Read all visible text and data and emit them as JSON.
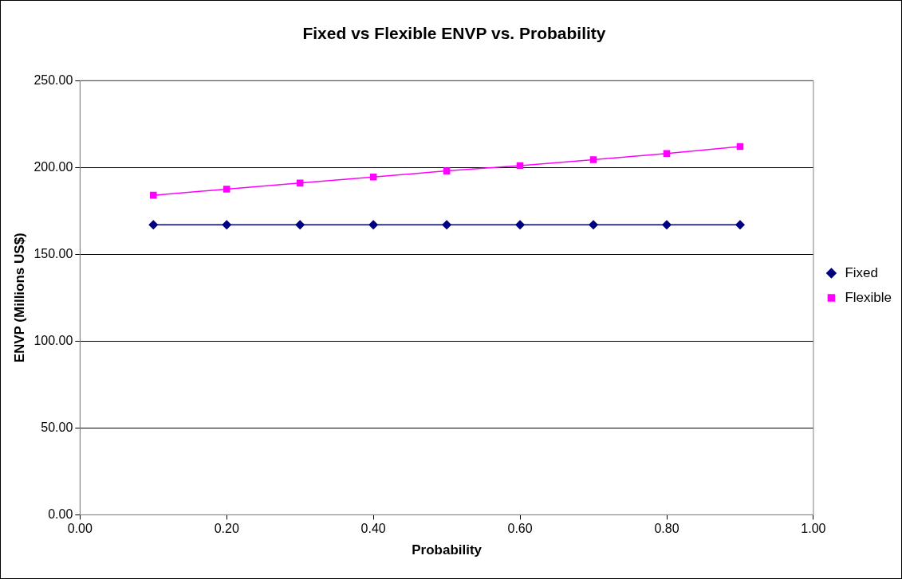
{
  "chart_data": {
    "type": "line",
    "title": "Fixed vs Flexible ENVP vs. Probability",
    "xlabel": "Probability",
    "ylabel": "ENVP (Millions US$)",
    "x": [
      0.1,
      0.2,
      0.3,
      0.4,
      0.5,
      0.6,
      0.7,
      0.8,
      0.9
    ],
    "series": [
      {
        "name": "Fixed",
        "color": "#000080",
        "marker": "diamond",
        "values": [
          167,
          167,
          167,
          167,
          167,
          167,
          167,
          167,
          167
        ]
      },
      {
        "name": "Flexible",
        "color": "#ff00ff",
        "marker": "square",
        "values": [
          184,
          187.5,
          191,
          194.5,
          198,
          201,
          204.5,
          208,
          212
        ]
      }
    ],
    "xlim": [
      0,
      1
    ],
    "xticks": [
      {
        "value": 0,
        "label": "0.00"
      },
      {
        "value": 0.2,
        "label": "0.20"
      },
      {
        "value": 0.4,
        "label": "0.40"
      },
      {
        "value": 0.6,
        "label": "0.60"
      },
      {
        "value": 0.8,
        "label": "0.80"
      },
      {
        "value": 1,
        "label": "1.00"
      }
    ],
    "ylim": [
      0,
      250
    ],
    "yticks": [
      {
        "value": 0,
        "label": "0.00"
      },
      {
        "value": 50,
        "label": "50.00"
      },
      {
        "value": 100,
        "label": "100.00"
      },
      {
        "value": 150,
        "label": "150.00"
      },
      {
        "value": 200,
        "label": "200.00"
      },
      {
        "value": 250,
        "label": "250.00"
      }
    ],
    "grid": "y",
    "legend": "right",
    "line_style": "solid"
  }
}
